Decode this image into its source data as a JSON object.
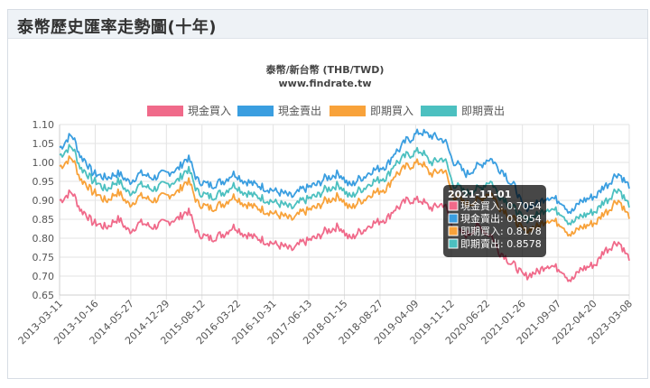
{
  "page": {
    "title": "泰幣歷史匯率走勢圖(十年)"
  },
  "chart_data": {
    "type": "line",
    "title": "泰幣/新台幣 (THB/TWD)",
    "subtitle": "www.findrate.tw",
    "ylim": [
      0.65,
      1.1
    ],
    "yticks": [
      "0.65",
      "0.70",
      "0.75",
      "0.80",
      "0.85",
      "0.90",
      "0.95",
      "1.00",
      "1.05",
      "1.10"
    ],
    "xticks": [
      "2013-03-11",
      "2013-10-16",
      "2014-05-27",
      "2014-12-29",
      "2015-08-12",
      "2016-03-22",
      "2016-10-31",
      "2017-06-13",
      "2018-01-15",
      "2018-08-27",
      "2019-04-09",
      "2019-11-12",
      "2020-06-22",
      "2021-01-26",
      "2021-09-07",
      "2022-04-20",
      "2023-03-08"
    ],
    "grid": true,
    "legend_position": "top",
    "series": [
      {
        "name": "現金買入",
        "color": "#f06a8a",
        "values": [
          0.9,
          0.92,
          0.87,
          0.84,
          0.83,
          0.85,
          0.82,
          0.84,
          0.83,
          0.84,
          0.85,
          0.87,
          0.81,
          0.8,
          0.81,
          0.83,
          0.81,
          0.8,
          0.79,
          0.78,
          0.77,
          0.79,
          0.8,
          0.82,
          0.83,
          0.8,
          0.82,
          0.84,
          0.85,
          0.88,
          0.9,
          0.9,
          0.88,
          0.89,
          0.82,
          0.81,
          0.83,
          0.81,
          0.76,
          0.73,
          0.7,
          0.71,
          0.73,
          0.72,
          0.69,
          0.72,
          0.73,
          0.77,
          0.79,
          0.75
        ]
      },
      {
        "name": "現金賣出",
        "color": "#3a9ee0",
        "values": [
          1.04,
          1.07,
          1.01,
          0.97,
          0.96,
          0.97,
          0.95,
          0.97,
          0.96,
          0.97,
          0.98,
          1.01,
          0.95,
          0.94,
          0.95,
          0.97,
          0.95,
          0.94,
          0.93,
          0.92,
          0.91,
          0.93,
          0.94,
          0.96,
          0.97,
          0.94,
          0.96,
          0.98,
          0.99,
          1.03,
          1.06,
          1.08,
          1.07,
          1.06,
          1.0,
          0.97,
          0.99,
          1.01,
          0.98,
          0.94,
          0.88,
          0.89,
          0.91,
          0.9,
          0.87,
          0.9,
          0.91,
          0.94,
          0.97,
          0.94
        ]
      },
      {
        "name": "即期買入",
        "color": "#f8a23a",
        "values": [
          0.99,
          1.01,
          0.95,
          0.92,
          0.9,
          0.92,
          0.89,
          0.91,
          0.9,
          0.91,
          0.92,
          0.95,
          0.89,
          0.88,
          0.89,
          0.91,
          0.89,
          0.88,
          0.87,
          0.86,
          0.85,
          0.87,
          0.88,
          0.9,
          0.91,
          0.88,
          0.9,
          0.92,
          0.93,
          0.97,
          0.99,
          1.0,
          0.97,
          0.98,
          0.91,
          0.89,
          0.9,
          0.92,
          0.88,
          0.85,
          0.82,
          0.83,
          0.85,
          0.84,
          0.81,
          0.83,
          0.84,
          0.87,
          0.9,
          0.86
        ]
      },
      {
        "name": "即期賣出",
        "color": "#4cc0c0",
        "values": [
          1.02,
          1.04,
          0.98,
          0.95,
          0.93,
          0.95,
          0.92,
          0.94,
          0.93,
          0.94,
          0.95,
          0.98,
          0.92,
          0.91,
          0.92,
          0.94,
          0.92,
          0.91,
          0.9,
          0.89,
          0.88,
          0.9,
          0.91,
          0.93,
          0.94,
          0.91,
          0.93,
          0.95,
          0.96,
          1.0,
          1.02,
          1.03,
          1.0,
          1.01,
          0.94,
          0.92,
          0.93,
          0.95,
          0.91,
          0.88,
          0.85,
          0.86,
          0.88,
          0.87,
          0.84,
          0.86,
          0.87,
          0.9,
          0.93,
          0.89
        ]
      }
    ],
    "tooltip": {
      "date": "2021-11-01",
      "items": [
        {
          "label": "現金買入: 0.7054",
          "color": "#f06a8a"
        },
        {
          "label": "現金賣出: 0.8954",
          "color": "#3a9ee0"
        },
        {
          "label": "即期買入: 0.8178",
          "color": "#f8a23a"
        },
        {
          "label": "即期賣出: 0.8578",
          "color": "#4cc0c0"
        }
      ]
    }
  }
}
